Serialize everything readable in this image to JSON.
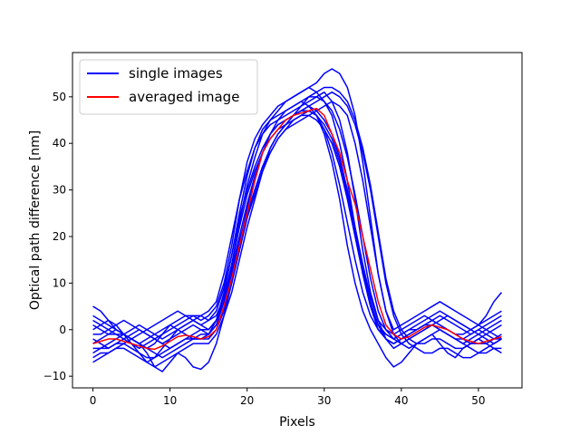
{
  "chart_data": {
    "type": "line",
    "title": "",
    "xlabel": "Pixels",
    "ylabel": "Optical path difference [nm]",
    "xlim": [
      -2.65,
      55.65
    ],
    "ylim": [
      -12.5,
      59.5
    ],
    "xticks": [
      0,
      10,
      20,
      30,
      40,
      50
    ],
    "yticks": [
      -10,
      0,
      10,
      20,
      30,
      40,
      50
    ],
    "grid": false,
    "legend": {
      "position": "top-left",
      "entries": [
        {
          "label": "single images",
          "color": "#0000ff"
        },
        {
          "label": "averaged image",
          "color": "#ff0000"
        }
      ]
    },
    "x": [
      0,
      1,
      2,
      3,
      4,
      5,
      6,
      7,
      8,
      9,
      10,
      11,
      12,
      13,
      14,
      15,
      16,
      17,
      18,
      19,
      20,
      21,
      22,
      23,
      24,
      25,
      26,
      27,
      28,
      29,
      30,
      31,
      32,
      33,
      34,
      35,
      36,
      37,
      38,
      39,
      40,
      41,
      42,
      43,
      44,
      45,
      46,
      47,
      48,
      49,
      50,
      51,
      52,
      53
    ],
    "series": [
      {
        "name": "averaged image",
        "color": "#ff0000",
        "values": [
          -3,
          -2.5,
          -2,
          -2,
          -2.5,
          -3,
          -3.5,
          -4,
          -4.2,
          -3.5,
          -2.5,
          -1.5,
          -1.2,
          -1.5,
          -2,
          -1.5,
          0,
          5,
          11,
          18,
          25,
          32,
          38,
          41,
          43,
          45,
          46,
          46.5,
          47,
          47.5,
          46,
          42,
          38,
          32,
          27,
          20,
          13,
          6,
          1,
          -1,
          -2,
          -1.5,
          -0.5,
          0.5,
          1,
          0.5,
          0,
          -1,
          -2,
          -2.5,
          -3,
          -2.5,
          -2,
          -1.5
        ]
      },
      {
        "color": "#0000ff",
        "values": [
          5,
          4,
          2,
          0,
          -1,
          -2,
          -3,
          -4,
          -3,
          -1,
          1,
          2,
          3,
          3,
          2,
          3,
          5,
          10,
          18,
          28,
          36,
          41,
          44,
          46,
          48,
          49,
          50,
          51,
          52,
          53,
          55,
          56,
          55,
          52,
          46,
          36,
          24,
          12,
          4,
          0,
          1,
          2,
          3,
          4,
          5,
          6,
          5,
          4,
          3,
          2,
          1,
          3,
          6,
          8
        ]
      },
      {
        "color": "#0000ff",
        "values": [
          -7,
          -6,
          -5,
          -4,
          -3,
          -2,
          -3,
          -5,
          -8,
          -9,
          -7,
          -5,
          -6,
          -8,
          -8.5,
          -7,
          -3,
          3,
          10,
          18,
          26,
          32,
          38,
          42,
          44,
          45,
          46,
          47,
          48,
          46,
          42,
          36,
          28,
          18,
          10,
          4,
          0,
          -3,
          -6,
          -8,
          -7,
          -5,
          -3,
          -2,
          -1,
          -3,
          -5,
          -6,
          -4,
          -3,
          -2,
          -3,
          -4,
          -5
        ]
      },
      {
        "color": "#0000ff",
        "values": [
          -2,
          -3,
          -4,
          -3,
          -2,
          -1,
          0,
          -1,
          -2,
          -3,
          -2,
          -1,
          0,
          1,
          0,
          -1,
          1,
          6,
          14,
          23,
          31,
          37,
          42,
          45,
          47,
          49,
          50,
          51,
          52,
          51,
          49,
          46,
          40,
          32,
          22,
          12,
          5,
          0,
          -2,
          -3,
          -2,
          -1,
          0,
          1,
          2,
          1,
          0,
          -1,
          -2,
          -3,
          -2,
          -1,
          0,
          1
        ]
      },
      {
        "color": "#0000ff",
        "values": [
          0,
          1,
          2,
          1,
          -1,
          -3,
          -5,
          -7,
          -6,
          -4,
          -2,
          0,
          1,
          2,
          3,
          4,
          6,
          12,
          20,
          28,
          34,
          39,
          42,
          44,
          45,
          46,
          47,
          48,
          49,
          50,
          51,
          49,
          45,
          38,
          28,
          17,
          8,
          2,
          -2,
          -4,
          -3,
          -2,
          -1,
          0,
          1,
          2,
          3,
          2,
          1,
          0,
          -1,
          0,
          1,
          2
        ]
      },
      {
        "color": "#0000ff",
        "values": [
          -4,
          -4,
          -3,
          -2,
          -1,
          -2,
          -3,
          -4,
          -5,
          -6,
          -5,
          -4,
          -3,
          -2,
          -1,
          -1,
          1,
          4,
          10,
          17,
          24,
          29,
          34,
          38,
          41,
          43,
          44,
          45,
          46,
          47,
          48,
          49,
          48,
          46,
          40,
          32,
          22,
          12,
          4,
          -1,
          -3,
          -4,
          -3,
          -2,
          -1,
          0,
          -1,
          -2,
          -3,
          -4,
          -5,
          -4,
          -3,
          -2
        ]
      },
      {
        "color": "#0000ff",
        "values": [
          1,
          0,
          -1,
          -1,
          -2,
          -3,
          -4,
          -3,
          -2,
          -1,
          0,
          1,
          2,
          3,
          3,
          2,
          3,
          7,
          13,
          20,
          27,
          33,
          38,
          42,
          45,
          47,
          48,
          49,
          48,
          47,
          45,
          42,
          37,
          30,
          22,
          14,
          7,
          2,
          0,
          -1,
          0,
          1,
          2,
          3,
          2,
          1,
          0,
          -1,
          -1,
          0,
          1,
          0,
          -1,
          -2
        ]
      },
      {
        "color": "#0000ff",
        "values": [
          -6,
          -5,
          -5,
          -4,
          -4,
          -5,
          -6,
          -7,
          -8,
          -7,
          -6,
          -5,
          -4,
          -3,
          -3,
          -3,
          -1,
          3,
          8,
          15,
          22,
          28,
          34,
          39,
          42,
          44,
          46,
          47,
          48,
          49,
          50,
          51,
          50,
          48,
          44,
          38,
          30,
          20,
          10,
          3,
          -1,
          -3,
          -4,
          -5,
          -5,
          -4,
          -4,
          -5,
          -6,
          -6,
          -5,
          -5,
          -4,
          -4
        ]
      },
      {
        "color": "#0000ff",
        "values": [
          2,
          1,
          0,
          -1,
          -1,
          0,
          1,
          0,
          -1,
          -2,
          -1,
          0,
          1,
          2,
          1,
          0,
          2,
          6,
          12,
          19,
          25,
          30,
          35,
          38,
          41,
          43,
          45,
          46,
          47,
          46,
          44,
          41,
          36,
          29,
          21,
          13,
          6,
          1,
          -2,
          -3,
          -2,
          -1,
          0,
          1,
          2,
          3,
          2,
          1,
          0,
          -1,
          0,
          1,
          2,
          3
        ]
      },
      {
        "color": "#0000ff",
        "values": [
          -3,
          -2,
          -1,
          0,
          -1,
          -2,
          -3,
          -2,
          -1,
          0,
          1,
          0,
          -1,
          -2,
          -2,
          -1,
          2,
          8,
          16,
          25,
          33,
          39,
          43,
          45,
          46,
          47,
          48,
          49,
          50,
          50,
          49,
          47,
          43,
          37,
          29,
          20,
          11,
          4,
          0,
          -2,
          -3,
          -2,
          -1,
          0,
          1,
          0,
          -1,
          -2,
          -3,
          -2,
          -1,
          -2,
          -3,
          -2
        ]
      },
      {
        "color": "#0000ff",
        "values": [
          3,
          2,
          1,
          0,
          -1,
          -2,
          -1,
          0,
          1,
          2,
          3,
          4,
          3,
          2,
          1,
          2,
          4,
          9,
          16,
          24,
          30,
          35,
          39,
          42,
          44,
          45,
          46,
          47,
          47,
          46,
          43,
          38,
          31,
          23,
          15,
          8,
          3,
          0,
          -1,
          -2,
          -1,
          0,
          1,
          2,
          3,
          4,
          3,
          2,
          1,
          0,
          1,
          2,
          3,
          4
        ]
      },
      {
        "color": "#0000ff",
        "values": [
          -5,
          -4,
          -4,
          -3,
          -3,
          -4,
          -5,
          -6,
          -6,
          -5,
          -4,
          -3,
          -2,
          -2,
          -2,
          -2,
          0,
          4,
          10,
          17,
          24,
          30,
          35,
          39,
          42,
          44,
          46,
          48,
          50,
          51,
          52,
          52,
          51,
          49,
          45,
          39,
          31,
          21,
          11,
          4,
          0,
          -2,
          -3,
          -3,
          -2,
          -2,
          -3,
          -4,
          -4,
          -3,
          -3,
          -3,
          -2,
          -2
        ]
      },
      {
        "color": "#0000ff",
        "values": [
          -1,
          -1,
          0,
          1,
          2,
          1,
          0,
          -1,
          -2,
          -3,
          -4,
          -3,
          -2,
          -1,
          0,
          0,
          2,
          7,
          14,
          22,
          29,
          34,
          38,
          41,
          43,
          44,
          45,
          46,
          46,
          45,
          43,
          40,
          35,
          28,
          20,
          12,
          5,
          1,
          -1,
          -2,
          -1,
          0,
          0,
          1,
          1,
          0,
          -1,
          -2,
          -2,
          -1,
          0,
          -1,
          -2,
          -1
        ]
      }
    ]
  }
}
